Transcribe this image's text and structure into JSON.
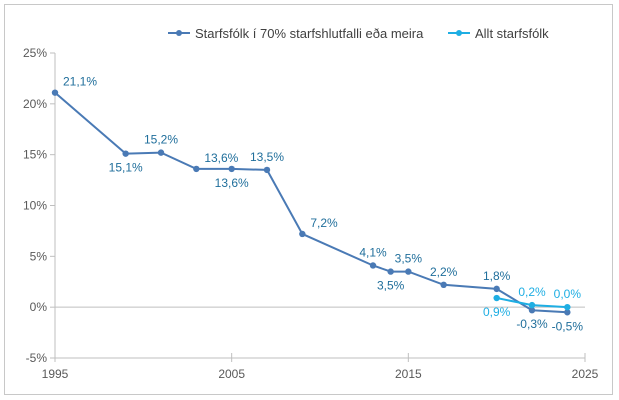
{
  "chart_data": {
    "type": "line",
    "title": "",
    "xlabel": "",
    "ylabel": "",
    "xlim": [
      1995,
      2025
    ],
    "ylim": [
      -5,
      25
    ],
    "x_ticks": [
      "1995",
      "2005",
      "2015",
      "2025"
    ],
    "y_ticks": [
      "25%",
      "20%",
      "15%",
      "10%",
      "5%",
      "0%",
      "-5%"
    ],
    "legend_position": "top-right",
    "series": [
      {
        "name": "Starfsfólk í 70% starfshlutfalli eða meira",
        "color": "#4a7ab5",
        "label_color": "#1f6e9b",
        "points": [
          {
            "x": 1995,
            "y": 21.1,
            "label": "21,1%",
            "label_pos": "above-right"
          },
          {
            "x": 1999,
            "y": 15.1,
            "label": "15,1%",
            "label_pos": "below"
          },
          {
            "x": 2001,
            "y": 15.2,
            "label": "15,2%",
            "label_pos": "above"
          },
          {
            "x": 2003,
            "y": 13.6,
            "label": "13,6%",
            "label_pos": "above-right"
          },
          {
            "x": 2005,
            "y": 13.6,
            "label": "13,6%",
            "label_pos": "below"
          },
          {
            "x": 2007,
            "y": 13.5,
            "label": "13,5%",
            "label_pos": "above"
          },
          {
            "x": 2009,
            "y": 7.2,
            "label": "7,2%",
            "label_pos": "above-right"
          },
          {
            "x": 2013,
            "y": 4.1,
            "label": "4,1%",
            "label_pos": "above"
          },
          {
            "x": 2014,
            "y": 3.5,
            "label": "3,5%",
            "label_pos": "below"
          },
          {
            "x": 2015,
            "y": 3.5,
            "label": "3,5%",
            "label_pos": "above"
          },
          {
            "x": 2017,
            "y": 2.2,
            "label": "2,2%",
            "label_pos": "above"
          },
          {
            "x": 2020,
            "y": 1.8,
            "label": "1,8%",
            "label_pos": "above"
          },
          {
            "x": 2022,
            "y": -0.3,
            "label": "-0,3%",
            "label_pos": "below"
          },
          {
            "x": 2024,
            "y": -0.5,
            "label": "-0,5%",
            "label_pos": "below"
          }
        ]
      },
      {
        "name": "Allt starfsfólk",
        "color": "#1eaee3",
        "label_color": "#1eaee3",
        "points": [
          {
            "x": 2020,
            "y": 0.9,
            "label": "0,9%",
            "label_pos": "below"
          },
          {
            "x": 2022,
            "y": 0.2,
            "label": "0,2%",
            "label_pos": "above"
          },
          {
            "x": 2024,
            "y": 0.0,
            "label": "0,0%",
            "label_pos": "above"
          }
        ]
      }
    ]
  }
}
